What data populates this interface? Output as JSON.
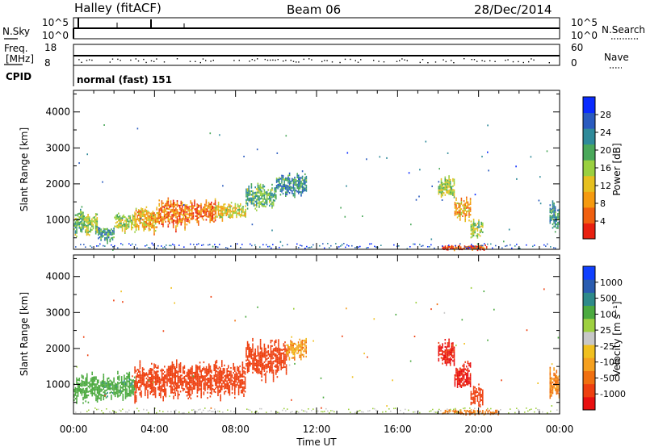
{
  "header": {
    "station": "Halley (fitACF)",
    "beam": "Beam 06",
    "date": "28/Dec/2014"
  },
  "strips": {
    "nsky": {
      "label": "N.Sky",
      "top_tick": "10^5",
      "bottom_tick": "10^0",
      "right_label": "N.Search",
      "right_top_tick": "10^5",
      "right_bottom_tick": "10^0"
    },
    "freq": {
      "label_line1": "Freq.",
      "label_line2": "[MHz]",
      "top_tick": "18",
      "bottom_tick": "8",
      "right_label": "Nave",
      "right_top_tick": "60",
      "right_bottom_tick": "0"
    },
    "cpid": {
      "label": "CPID",
      "text": "normal (fast) 151"
    }
  },
  "axes": {
    "ylabel": "Slant Range [km]",
    "xlabel": "Time UT",
    "y_ticks": [
      "1000",
      "2000",
      "3000",
      "4000"
    ],
    "x_ticks": [
      "00:00",
      "04:00",
      "08:00",
      "12:00",
      "16:00",
      "20:00",
      "00:00"
    ]
  },
  "colorbars": {
    "power": {
      "label": "Power [dB]",
      "ticks": [
        "4",
        "8",
        "12",
        "16",
        "20",
        "24",
        "28"
      ],
      "colors": [
        "#0a2bff",
        "#2a5bbf",
        "#2f8a9a",
        "#4aa85a",
        "#9ad040",
        "#e6c020",
        "#f59a10",
        "#f06010",
        "#e82010"
      ]
    },
    "velocity": {
      "label": "Velocity [m s⁻¹]",
      "ticks": [
        "1000",
        "500",
        "100",
        "25",
        "-25",
        "-100",
        "-500",
        "-1000"
      ],
      "colors": [
        "#1040ff",
        "#2a5cb0",
        "#2e8a8a",
        "#4caa40",
        "#9ed040",
        "#c8c8c8",
        "#f0c020",
        "#f5a020",
        "#f07010",
        "#ee4010",
        "#e81010"
      ]
    }
  },
  "chart_data": {
    "type": "heatmap",
    "x": {
      "label": "Time UT",
      "range": [
        "00:00",
        "24:00"
      ],
      "ticks": [
        "00:00",
        "04:00",
        "08:00",
        "12:00",
        "16:00",
        "20:00",
        "00:00"
      ]
    },
    "y": {
      "label": "Slant Range [km]",
      "ylim": [
        180,
        4600
      ],
      "ticks": [
        1000,
        2000,
        3000,
        4000
      ]
    },
    "panels": [
      {
        "name": "Power [dB]",
        "scale": [
          0,
          30
        ],
        "regions": [
          {
            "t0": 0.0,
            "t1": 0.5,
            "r0": 600,
            "r1": 1300,
            "level": 0.4
          },
          {
            "t0": 0.5,
            "t1": 1.2,
            "r0": 600,
            "r1": 1200,
            "level": 0.5
          },
          {
            "t0": 1.2,
            "t1": 2.0,
            "r0": 400,
            "r1": 800,
            "level": 0.3
          },
          {
            "t0": 2.0,
            "t1": 3.0,
            "r0": 650,
            "r1": 1200,
            "level": 0.5
          },
          {
            "t0": 3.0,
            "t1": 4.2,
            "r0": 700,
            "r1": 1350,
            "level": 0.7
          },
          {
            "t0": 4.2,
            "t1": 5.5,
            "r0": 800,
            "r1": 1600,
            "level": 0.8
          },
          {
            "t0": 5.5,
            "t1": 7.0,
            "r0": 900,
            "r1": 1550,
            "level": 0.8
          },
          {
            "t0": 7.0,
            "t1": 8.5,
            "r0": 1000,
            "r1": 1500,
            "level": 0.6
          },
          {
            "t0": 8.5,
            "t1": 10.0,
            "r0": 1300,
            "r1": 2000,
            "level": 0.4
          },
          {
            "t0": 10.0,
            "t1": 11.5,
            "r0": 1700,
            "r1": 2300,
            "level": 0.3
          },
          {
            "t0": 18.0,
            "t1": 18.8,
            "r0": 1600,
            "r1": 2200,
            "level": 0.5
          },
          {
            "t0": 18.8,
            "t1": 19.6,
            "r0": 1000,
            "r1": 1600,
            "level": 0.7
          },
          {
            "t0": 19.6,
            "t1": 20.2,
            "r0": 500,
            "r1": 1000,
            "level": 0.5
          },
          {
            "t0": 18.2,
            "t1": 20.4,
            "r0": 180,
            "r1": 300,
            "level": 0.9
          },
          {
            "t0": 23.5,
            "t1": 24.0,
            "r0": 600,
            "r1": 1500,
            "level": 0.3
          }
        ]
      },
      {
        "name": "Velocity [m s-1]",
        "scale": [
          -1000,
          1000
        ],
        "regions": [
          {
            "t0": 0.0,
            "t1": 1.2,
            "r0": 500,
            "r1": 1300,
            "velocity": 150
          },
          {
            "t0": 1.2,
            "t1": 3.0,
            "r0": 600,
            "r1": 1300,
            "velocity": 200
          },
          {
            "t0": 3.0,
            "t1": 5.0,
            "r0": 600,
            "r1": 1600,
            "velocity": -150
          },
          {
            "t0": 5.0,
            "t1": 8.5,
            "r0": 700,
            "r1": 1600,
            "velocity": -200
          },
          {
            "t0": 8.5,
            "t1": 10.5,
            "r0": 1200,
            "r1": 2200,
            "velocity": -150
          },
          {
            "t0": 10.5,
            "t1": 11.5,
            "r0": 1700,
            "r1": 2300,
            "velocity": -40
          },
          {
            "t0": 18.0,
            "t1": 18.8,
            "r0": 1500,
            "r1": 2200,
            "velocity": -600
          },
          {
            "t0": 18.8,
            "t1": 19.6,
            "r0": 900,
            "r1": 1600,
            "velocity": -600
          },
          {
            "t0": 19.6,
            "t1": 20.2,
            "r0": 400,
            "r1": 1000,
            "velocity": -300
          },
          {
            "t0": 18.2,
            "t1": 21.0,
            "r0": 180,
            "r1": 300,
            "velocity": -60
          },
          {
            "t0": 23.5,
            "t1": 24.0,
            "r0": 600,
            "r1": 1500,
            "velocity": -60
          }
        ]
      }
    ]
  }
}
